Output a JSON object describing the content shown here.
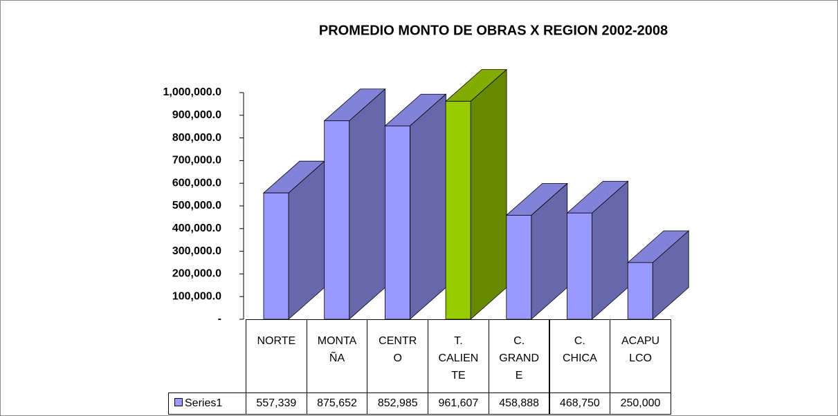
{
  "chart_data": {
    "type": "bar3d",
    "title": "PROMEDIO MONTO DE OBRAS X REGION 2002-2008",
    "categories": [
      "NORTE",
      "MONTAÑA",
      "CENTRO",
      "T. CALIENTE",
      "C. GRANDE",
      "C. CHICA",
      "ACAPULCO"
    ],
    "series": [
      {
        "name": "Series1",
        "color": "#9999ff",
        "colors": [
          "#9999ff",
          "#9999ff",
          "#9999ff",
          "#99cc00",
          "#9999ff",
          "#9999ff",
          "#9999ff"
        ],
        "values": [
          557339,
          875652,
          852985,
          961607,
          458888,
          468750,
          250000
        ],
        "value_labels": [
          "557,339",
          "875,652",
          "852,985",
          "961,607",
          "458,888",
          "468,750",
          "250,000"
        ]
      }
    ],
    "ylim": [
      0,
      1000000
    ],
    "yticks": [
      {
        "value": 0,
        "label": "-"
      },
      {
        "value": 100000,
        "label": "100,000.0"
      },
      {
        "value": 200000,
        "label": "200,000.0"
      },
      {
        "value": 300000,
        "label": "300,000.0"
      },
      {
        "value": 400000,
        "label": "400,000.0"
      },
      {
        "value": 500000,
        "label": "500,000.0"
      },
      {
        "value": 600000,
        "label": "600,000.0"
      },
      {
        "value": 700000,
        "label": "700,000.0"
      },
      {
        "value": 800000,
        "label": "800,000.0"
      },
      {
        "value": 900000,
        "label": "900,000.0"
      },
      {
        "value": 1000000,
        "label": "1,000,000.0"
      }
    ]
  }
}
